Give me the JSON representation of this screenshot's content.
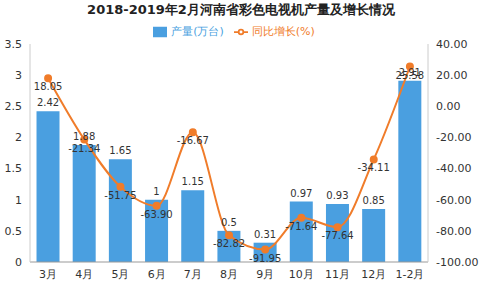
{
  "chart_data": {
    "type": "bar",
    "title": "2018-2019年2月河南省彩色电视机产量及增长情况",
    "categories": [
      "3月",
      "4月",
      "5月",
      "6月",
      "7月",
      "8月",
      "9月",
      "10月",
      "11月",
      "12月",
      "1-2月"
    ],
    "series": [
      {
        "name": "产量(万台)",
        "type": "bar",
        "color": "#4a9fe0",
        "values": [
          2.42,
          1.88,
          1.65,
          1,
          1.15,
          0.5,
          0.31,
          0.97,
          0.93,
          0.85,
          2.91
        ]
      },
      {
        "name": "同比增长(%)",
        "type": "line",
        "axis": "y2",
        "color": "#f07c2a",
        "marker": "circle",
        "values": [
          18.05,
          -21.34,
          -51.75,
          -63.9,
          -16.67,
          -82.82,
          -91.95,
          -71.64,
          -77.64,
          -34.11,
          25.58
        ],
        "value_labels": [
          "18.05",
          "-21.34",
          "-51.75",
          "-63.90",
          "-16.67",
          "-82.82",
          "-91.95",
          "-71.64",
          "-77.64",
          "-34.11",
          "25.58"
        ]
      }
    ],
    "ylim": [
      0,
      3.5
    ],
    "yticks": [
      0,
      0.5,
      1,
      1.5,
      2,
      2.5,
      3,
      3.5
    ],
    "y2lim": [
      -100,
      40
    ],
    "y2ticks": [
      {
        "value": -100,
        "label": "-100.00"
      },
      {
        "value": -80,
        "label": "-80.00"
      },
      {
        "value": -60,
        "label": "-60.00"
      },
      {
        "value": -40,
        "label": "-40.00"
      },
      {
        "value": -20,
        "label": "-20.00"
      },
      {
        "value": 0,
        "label": "0.00"
      },
      {
        "value": 20,
        "label": "20.00"
      },
      {
        "value": 40,
        "label": "40.00"
      }
    ],
    "grid": false,
    "legend": "top",
    "data_labels": true
  }
}
